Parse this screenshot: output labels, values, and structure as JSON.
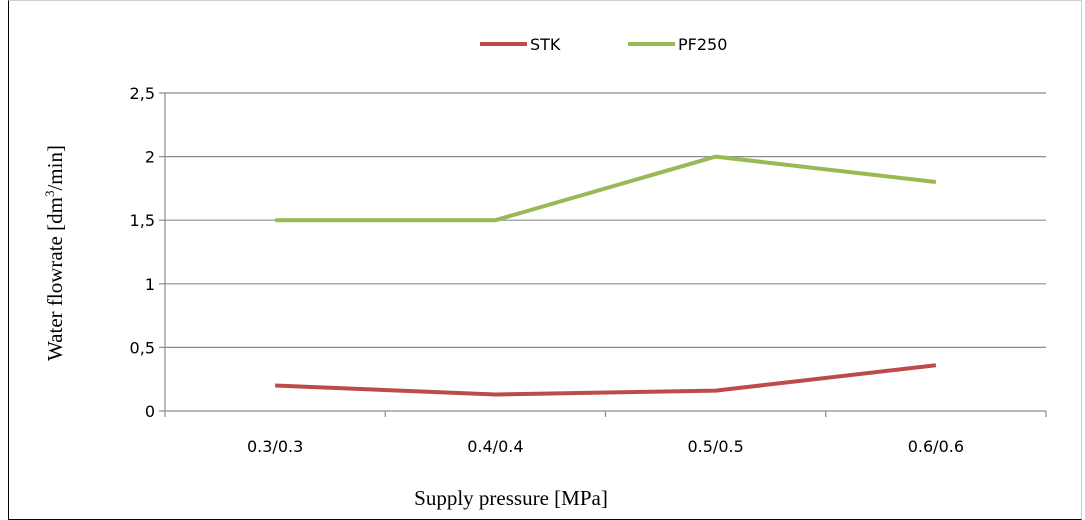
{
  "chart_data": {
    "type": "line",
    "categories": [
      "0.3/0.3",
      "0.4/0.4",
      "0.5/0.5",
      "0.6/0.6"
    ],
    "series": [
      {
        "name": "STK",
        "values": [
          0.2,
          0.13,
          0.16,
          0.36
        ],
        "color": "#be4b48"
      },
      {
        "name": "PF250",
        "values": [
          1.5,
          1.5,
          2.0,
          1.8
        ],
        "color": "#98b954"
      }
    ],
    "ylim": [
      0,
      2.5
    ],
    "yticks": [
      "0",
      "0,5",
      "1",
      "1,5",
      "2",
      "2,5"
    ],
    "ylabel_main": "Water flowrate [dm",
    "ylabel_sup": "3",
    "ylabel_end": "/min]",
    "xlabel": "Supply pressure [MPa]",
    "grid": "horizontal",
    "legend_position": "top"
  }
}
